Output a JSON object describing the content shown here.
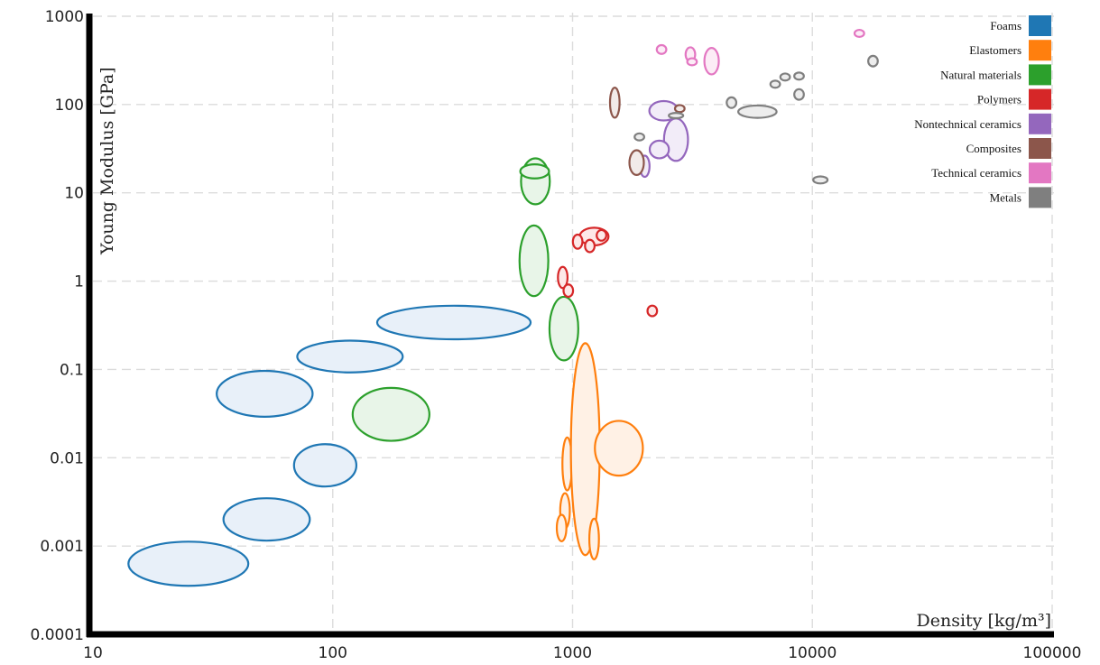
{
  "chart_data": {
    "type": "scatter",
    "xlabel": "Density [kg/m³]",
    "ylabel": "Young Modulus [GPa]",
    "xscale": "log",
    "yscale": "log",
    "xlim": [
      10,
      100000
    ],
    "ylim": [
      0.0001,
      1000
    ],
    "x_ticks": [
      "10",
      "100",
      "1000",
      "10000",
      "100000"
    ],
    "y_ticks": [
      "0.0001",
      "0.001",
      "0.01",
      "0.1",
      "1",
      "10",
      "100",
      "1000"
    ],
    "grid": true,
    "legend_position": "top-right",
    "series": [
      {
        "name": "Foams",
        "color": "#1f77b4",
        "fill": "#e8f0f9",
        "regions": [
          {
            "x": 25,
            "y": 0.00063,
            "wx": 0.25,
            "wy": 0.25
          },
          {
            "x": 53,
            "y": 0.002,
            "wx": 0.18,
            "wy": 0.24
          },
          {
            "x": 93,
            "y": 0.0082,
            "wx": 0.13,
            "wy": 0.24
          },
          {
            "x": 52,
            "y": 0.053,
            "wx": 0.2,
            "wy": 0.26
          },
          {
            "x": 118,
            "y": 0.14,
            "wx": 0.22,
            "wy": 0.18
          },
          {
            "x": 320,
            "y": 0.34,
            "wx": 0.32,
            "wy": 0.19
          }
        ]
      },
      {
        "name": "Elastomers",
        "color": "#ff7f0e",
        "fill": "#fff1e5",
        "regions": [
          {
            "x": 950,
            "y": 0.0085,
            "wx": 0.02,
            "wy": 0.3
          },
          {
            "x": 1130,
            "y": 0.0125,
            "wx": 0.06,
            "wy": 1.2
          },
          {
            "x": 1560,
            "y": 0.0128,
            "wx": 0.1,
            "wy": 0.31
          },
          {
            "x": 930,
            "y": 0.0025,
            "wx": 0.02,
            "wy": 0.2
          },
          {
            "x": 900,
            "y": 0.0016,
            "wx": 0.02,
            "wy": 0.15
          },
          {
            "x": 1230,
            "y": 0.0012,
            "wx": 0.02,
            "wy": 0.23
          }
        ]
      },
      {
        "name": "Natural materials",
        "color": "#2ca02c",
        "fill": "#e8f5e8",
        "regions": [
          {
            "x": 700,
            "y": 13.5,
            "wx": 0.06,
            "wy": 0.26
          },
          {
            "x": 695,
            "y": 17.5,
            "wx": 0.06,
            "wy": 0.08
          },
          {
            "x": 690,
            "y": 1.7,
            "wx": 0.06,
            "wy": 0.4
          },
          {
            "x": 920,
            "y": 0.29,
            "wx": 0.06,
            "wy": 0.36
          },
          {
            "x": 175,
            "y": 0.031,
            "wx": 0.16,
            "wy": 0.3
          }
        ]
      },
      {
        "name": "Polymers",
        "color": "#d62728",
        "fill": "#fde8e8",
        "regions": [
          {
            "x": 1230,
            "y": 3.2,
            "wx": 0.06,
            "wy": 0.1
          },
          {
            "x": 1050,
            "y": 2.8,
            "wx": 0.02,
            "wy": 0.08
          },
          {
            "x": 1320,
            "y": 3.3,
            "wx": 0.02,
            "wy": 0.06
          },
          {
            "x": 1180,
            "y": 2.5,
            "wx": 0.02,
            "wy": 0.07
          },
          {
            "x": 910,
            "y": 1.1,
            "wx": 0.02,
            "wy": 0.12
          },
          {
            "x": 960,
            "y": 0.78,
            "wx": 0.02,
            "wy": 0.07
          },
          {
            "x": 2150,
            "y": 0.46,
            "wx": 0.02,
            "wy": 0.06
          }
        ]
      },
      {
        "name": "Nontechnical ceramics",
        "color": "#9467bd",
        "fill": "#f2ecf8",
        "regions": [
          {
            "x": 2400,
            "y": 85,
            "wx": 0.06,
            "wy": 0.11
          },
          {
            "x": 2700,
            "y": 40,
            "wx": 0.05,
            "wy": 0.24
          },
          {
            "x": 2300,
            "y": 31,
            "wx": 0.04,
            "wy": 0.1
          },
          {
            "x": 2000,
            "y": 20,
            "wx": 0.02,
            "wy": 0.12
          }
        ]
      },
      {
        "name": "Composites",
        "color": "#8c564b",
        "fill": "#f2ebe9",
        "regions": [
          {
            "x": 1500,
            "y": 105,
            "wx": 0.02,
            "wy": 0.17
          },
          {
            "x": 1850,
            "y": 22,
            "wx": 0.03,
            "wy": 0.14
          },
          {
            "x": 2800,
            "y": 90,
            "wx": 0.02,
            "wy": 0.04
          }
        ]
      },
      {
        "name": "Technical ceramics",
        "color": "#e377c2",
        "fill": "#fcecf6",
        "regions": [
          {
            "x": 2350,
            "y": 420,
            "wx": 0.02,
            "wy": 0.05
          },
          {
            "x": 3100,
            "y": 370,
            "wx": 0.02,
            "wy": 0.08
          },
          {
            "x": 3150,
            "y": 305,
            "wx": 0.02,
            "wy": 0.04
          },
          {
            "x": 3800,
            "y": 310,
            "wx": 0.03,
            "wy": 0.15
          },
          {
            "x": 15700,
            "y": 640,
            "wx": 0.02,
            "wy": 0.04
          }
        ]
      },
      {
        "name": "Metals",
        "color": "#7f7f7f",
        "fill": "#ededed",
        "regions": [
          {
            "x": 5900,
            "y": 83,
            "wx": 0.08,
            "wy": 0.07
          },
          {
            "x": 4600,
            "y": 105,
            "wx": 0.02,
            "wy": 0.06
          },
          {
            "x": 1900,
            "y": 43,
            "wx": 0.02,
            "wy": 0.04
          },
          {
            "x": 2700,
            "y": 75,
            "wx": 0.03,
            "wy": 0.03
          },
          {
            "x": 7000,
            "y": 170,
            "wx": 0.02,
            "wy": 0.04
          },
          {
            "x": 7700,
            "y": 205,
            "wx": 0.02,
            "wy": 0.04
          },
          {
            "x": 8800,
            "y": 210,
            "wx": 0.02,
            "wy": 0.04
          },
          {
            "x": 8800,
            "y": 130,
            "wx": 0.02,
            "wy": 0.06
          },
          {
            "x": 17900,
            "y": 310,
            "wx": 0.02,
            "wy": 0.06
          },
          {
            "x": 10800,
            "y": 14,
            "wx": 0.03,
            "wy": 0.04
          }
        ]
      }
    ]
  }
}
